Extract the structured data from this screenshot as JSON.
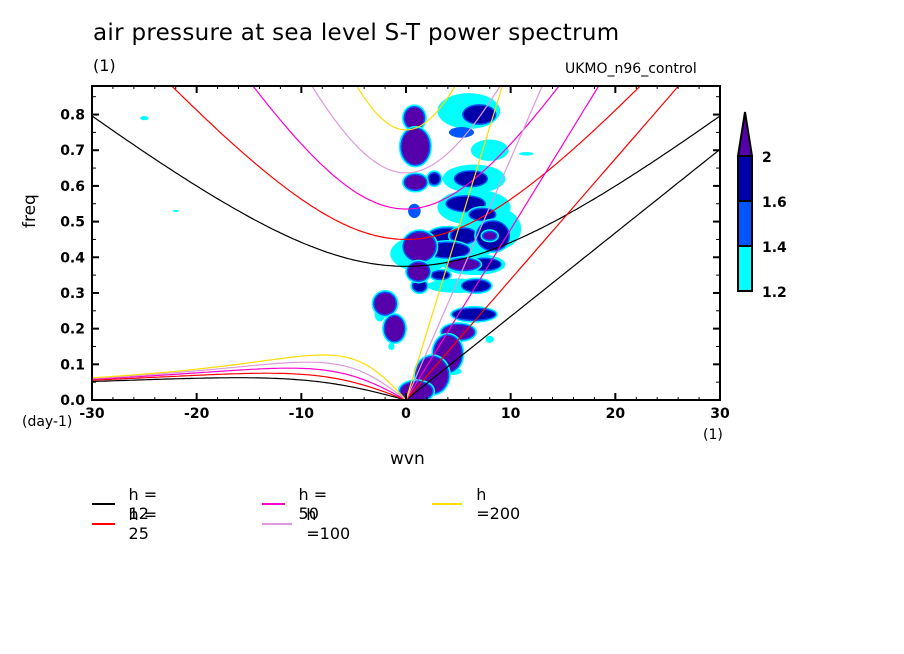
{
  "chart_data": {
    "type": "heatmap",
    "title": "air pressure at sea level S-T power spectrum",
    "subtitle_units": "(1)",
    "source_label": "UKMO_n96_control",
    "xlabel": "wvn",
    "ylabel": "freq",
    "x_units": "(1)",
    "y_units": "(day-1)",
    "xlim": [
      -30,
      30
    ],
    "ylim": [
      0,
      0.88
    ],
    "x_ticks": [
      -30,
      -20,
      -10,
      0,
      10,
      20,
      30
    ],
    "x_tick_labels": [
      "-30",
      "-20",
      "-10",
      "0",
      "10",
      "20",
      "30"
    ],
    "y_ticks": [
      0.0,
      0.1,
      0.2,
      0.3,
      0.4,
      0.5,
      0.6,
      0.7,
      0.8
    ],
    "y_tick_labels": [
      "0.0",
      "0.1",
      "0.2",
      "0.3",
      "0.4",
      "0.5",
      "0.6",
      "0.7",
      "0.8"
    ],
    "grid": false,
    "colorbar": {
      "levels": [
        1.2,
        1.4,
        1.6,
        2
      ],
      "level_labels": [
        "1.2",
        "1.4",
        "1.6",
        "2"
      ],
      "colors": [
        "#00ffff",
        "#0055ff",
        "#0000aa",
        "#5500aa"
      ],
      "extend": "max",
      "placement": "right"
    },
    "contour_blobs": [
      {
        "wvn": -25,
        "freq": 0.79,
        "rx": 0.4,
        "ry": 0.006,
        "level": 1.2
      },
      {
        "wvn": -22,
        "freq": 0.53,
        "rx": 0.3,
        "ry": 0.003,
        "level": 1.2
      },
      {
        "wvn": 0.8,
        "freq": 0.79,
        "rx": 0.9,
        "ry": 0.03,
        "level": 2
      },
      {
        "wvn": 0.9,
        "freq": 0.71,
        "rx": 1.3,
        "ry": 0.05,
        "level": 2
      },
      {
        "wvn": 0.9,
        "freq": 0.61,
        "rx": 1.0,
        "ry": 0.02,
        "level": 2
      },
      {
        "wvn": 0.8,
        "freq": 0.53,
        "rx": 0.6,
        "ry": 0.02,
        "level": 1.4
      },
      {
        "wvn": 2.7,
        "freq": 0.62,
        "rx": 0.5,
        "ry": 0.015,
        "level": 1.6
      },
      {
        "wvn": 6,
        "freq": 0.81,
        "rx": 3.0,
        "ry": 0.05,
        "level": 1.2
      },
      {
        "wvn": 7,
        "freq": 0.8,
        "rx": 1.5,
        "ry": 0.025,
        "level": 1.6
      },
      {
        "wvn": 5.3,
        "freq": 0.75,
        "rx": 1.2,
        "ry": 0.015,
        "level": 1.4
      },
      {
        "wvn": 8,
        "freq": 0.7,
        "rx": 1.8,
        "ry": 0.03,
        "level": 1.2
      },
      {
        "wvn": 6.5,
        "freq": 0.62,
        "rx": 3.0,
        "ry": 0.04,
        "level": 1.2
      },
      {
        "wvn": 6.2,
        "freq": 0.62,
        "rx": 1.5,
        "ry": 0.02,
        "level": 1.6
      },
      {
        "wvn": 6.5,
        "freq": 0.54,
        "rx": 3.5,
        "ry": 0.05,
        "level": 1.2
      },
      {
        "wvn": 5.7,
        "freq": 0.55,
        "rx": 1.8,
        "ry": 0.02,
        "level": 1.6
      },
      {
        "wvn": 7.3,
        "freq": 0.52,
        "rx": 1.2,
        "ry": 0.015,
        "level": 1.6
      },
      {
        "wvn": 4,
        "freq": 0.46,
        "rx": 1.8,
        "ry": 0.02,
        "level": 1.6
      },
      {
        "wvn": 6.5,
        "freq": 0.45,
        "rx": 2.5,
        "ry": 0.05,
        "level": 1.2
      },
      {
        "wvn": 5.5,
        "freq": 0.46,
        "rx": 1.2,
        "ry": 0.02,
        "level": 1.6
      },
      {
        "wvn": 8.5,
        "freq": 0.48,
        "rx": 2.5,
        "ry": 0.06,
        "level": 1.2
      },
      {
        "wvn": 8.3,
        "freq": 0.46,
        "rx": 1.5,
        "ry": 0.04,
        "level": 1.6
      },
      {
        "wvn": 8.0,
        "freq": 0.46,
        "rx": 0.6,
        "ry": 0.01,
        "level": 2
      },
      {
        "wvn": 1.5,
        "freq": 0.41,
        "rx": 3.0,
        "ry": 0.05,
        "level": 1.2
      },
      {
        "wvn": 1.3,
        "freq": 0.43,
        "rx": 1.5,
        "ry": 0.04,
        "level": 2
      },
      {
        "wvn": 4.0,
        "freq": 0.42,
        "rx": 2.0,
        "ry": 0.02,
        "level": 1.6
      },
      {
        "wvn": 6.5,
        "freq": 0.38,
        "rx": 3.0,
        "ry": 0.03,
        "level": 1.2
      },
      {
        "wvn": 5.5,
        "freq": 0.38,
        "rx": 1.5,
        "ry": 0.015,
        "level": 2
      },
      {
        "wvn": 7.5,
        "freq": 0.38,
        "rx": 1.5,
        "ry": 0.015,
        "level": 1.6
      },
      {
        "wvn": 1.2,
        "freq": 0.36,
        "rx": 1.0,
        "ry": 0.025,
        "level": 2
      },
      {
        "wvn": 1.3,
        "freq": 0.32,
        "rx": 0.6,
        "ry": 0.015,
        "level": 1.6
      },
      {
        "wvn": 3.3,
        "freq": 0.35,
        "rx": 0.8,
        "ry": 0.01,
        "level": 1.6
      },
      {
        "wvn": 5.0,
        "freq": 0.32,
        "rx": 3.0,
        "ry": 0.02,
        "level": 1.2
      },
      {
        "wvn": 6.7,
        "freq": 0.32,
        "rx": 1.3,
        "ry": 0.015,
        "level": 1.6
      },
      {
        "wvn": 6.5,
        "freq": 0.24,
        "rx": 2.0,
        "ry": 0.015,
        "level": 1.6
      },
      {
        "wvn": -2.0,
        "freq": 0.27,
        "rx": 1.0,
        "ry": 0.03,
        "level": 2
      },
      {
        "wvn": -2.5,
        "freq": 0.24,
        "rx": 0.5,
        "ry": 0.02,
        "level": 1.2
      },
      {
        "wvn": -1.1,
        "freq": 0.2,
        "rx": 0.9,
        "ry": 0.035,
        "level": 2
      },
      {
        "wvn": -1.4,
        "freq": 0.15,
        "rx": 0.3,
        "ry": 0.01,
        "level": 1.2
      },
      {
        "wvn": 5.0,
        "freq": 0.19,
        "rx": 1.5,
        "ry": 0.02,
        "level": 2
      },
      {
        "wvn": 4.0,
        "freq": 0.13,
        "rx": 1.3,
        "ry": 0.05,
        "level": 2
      },
      {
        "wvn": 2.5,
        "freq": 0.07,
        "rx": 1.5,
        "ry": 0.05,
        "level": 2
      },
      {
        "wvn": 1.0,
        "freq": 0.025,
        "rx": 1.5,
        "ry": 0.025,
        "level": 2
      },
      {
        "wvn": 4.5,
        "freq": 0.08,
        "rx": 0.8,
        "ry": 0.01,
        "level": 1.2
      },
      {
        "wvn": 8.0,
        "freq": 0.17,
        "rx": 0.4,
        "ry": 0.01,
        "level": 1.2
      },
      {
        "wvn": 11.5,
        "freq": 0.69,
        "rx": 0.7,
        "ry": 0.005,
        "level": 1.2
      }
    ],
    "series": [
      {
        "name": "h = 12",
        "equivalent_depth": 12,
        "color": "#000000"
      },
      {
        "name": "h = 25",
        "equivalent_depth": 25,
        "color": "#ff0000"
      },
      {
        "name": "h = 50",
        "equivalent_depth": 50,
        "color": "#ff00cc"
      },
      {
        "name": "h =100",
        "equivalent_depth": 100,
        "color": "#dd99dd"
      },
      {
        "name": "h =200",
        "equivalent_depth": 200,
        "color": "#ffdd00"
      }
    ],
    "legend_placement": "bottom-left"
  }
}
